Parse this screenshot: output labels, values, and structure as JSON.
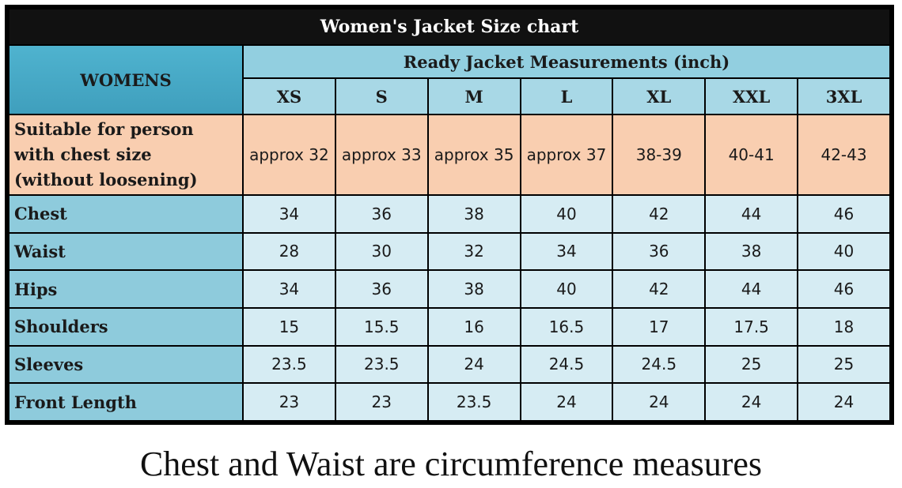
{
  "title": "Women's Jacket Size chart",
  "corner_label": "WOMENS",
  "group_header": "Ready Jacket Measurements (inch)",
  "sizes": [
    "XS",
    "S",
    "M",
    "L",
    "XL",
    "XXL",
    "3XL"
  ],
  "suitable": {
    "label_lines": [
      "Suitable for person",
      "with chest size",
      "(without loosening)"
    ],
    "values": [
      "approx 32",
      "approx 33",
      "approx 35",
      "approx 37",
      "38-39",
      "40-41",
      "42-43"
    ]
  },
  "rows": [
    {
      "label": "Chest",
      "values": [
        "34",
        "36",
        "38",
        "40",
        "42",
        "44",
        "46"
      ]
    },
    {
      "label": "Waist",
      "values": [
        "28",
        "30",
        "32",
        "34",
        "36",
        "38",
        "40"
      ]
    },
    {
      "label": "Hips",
      "values": [
        "34",
        "36",
        "38",
        "40",
        "42",
        "44",
        "46"
      ]
    },
    {
      "label": "Shoulders",
      "values": [
        "15",
        "15.5",
        "16",
        "16.5",
        "17",
        "17.5",
        "18"
      ]
    },
    {
      "label": "Sleeves",
      "values": [
        "23.5",
        "23.5",
        "24",
        "24.5",
        "24.5",
        "25",
        "25"
      ]
    },
    {
      "label": "Front Length",
      "values": [
        "23",
        "23",
        "23.5",
        "24",
        "24",
        "24",
        "24"
      ]
    }
  ],
  "caption": "Chest and Waist are circumference measures"
}
